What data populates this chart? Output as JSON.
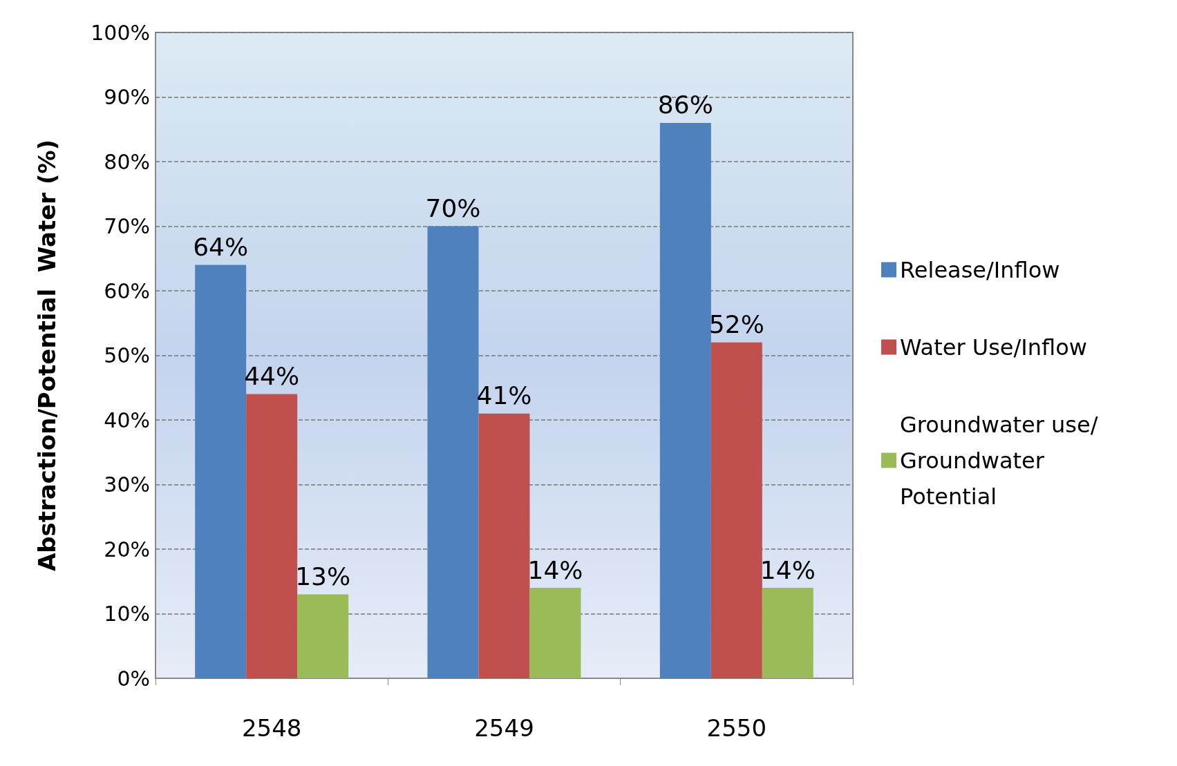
{
  "chart_data": {
    "type": "bar",
    "ylabel": "Abstraction/Potential  Water (%)",
    "categories": [
      "2548",
      "2549",
      "2550"
    ],
    "series": [
      {
        "name": "Release/Inflow",
        "color": "#4f81bd",
        "values": [
          64,
          70,
          86
        ],
        "value_labels": [
          "64%",
          "70%",
          "86%"
        ]
      },
      {
        "name": "Water Use/Inflow",
        "color": "#c0504d",
        "values": [
          44,
          41,
          52
        ],
        "value_labels": [
          "44%",
          "41%",
          "52%"
        ]
      },
      {
        "name": "Groundwater use/Groundwater Potential",
        "color": "#9bbb59",
        "values": [
          13,
          14,
          14
        ],
        "value_labels": [
          "13%",
          "14%",
          "14%"
        ]
      }
    ],
    "ylim": [
      0,
      100
    ],
    "yticks": [
      {
        "value": 0,
        "label": "0%"
      },
      {
        "value": 10,
        "label": "10%"
      },
      {
        "value": 20,
        "label": "20%"
      },
      {
        "value": 30,
        "label": "30%"
      },
      {
        "value": 40,
        "label": "40%"
      },
      {
        "value": 50,
        "label": "50%"
      },
      {
        "value": 60,
        "label": "60%"
      },
      {
        "value": 70,
        "label": "70%"
      },
      {
        "value": 80,
        "label": "80%"
      },
      {
        "value": 90,
        "label": "90%"
      },
      {
        "value": 100,
        "label": "100%"
      }
    ],
    "grid": "y",
    "legend": "right"
  }
}
